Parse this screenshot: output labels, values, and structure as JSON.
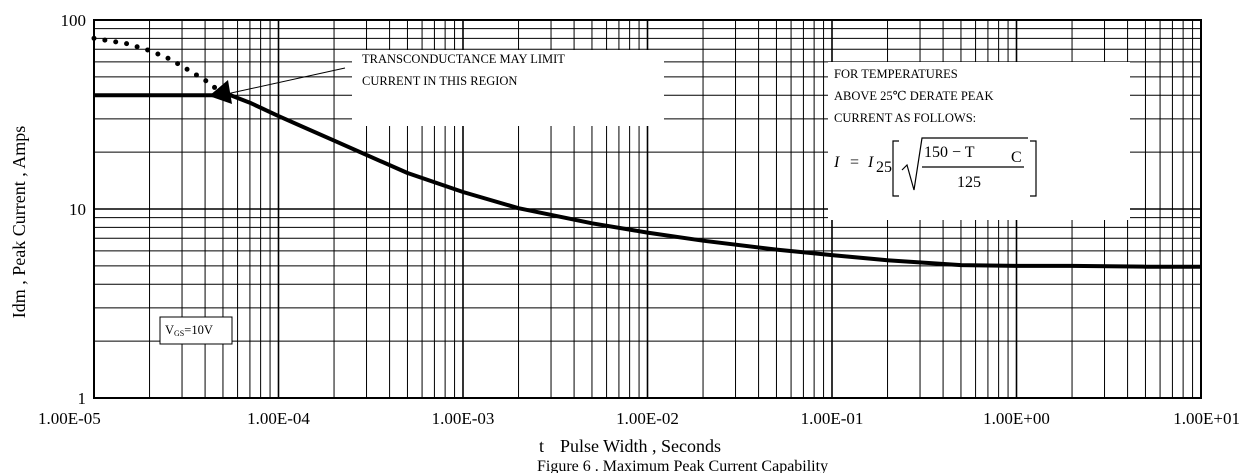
{
  "chart_data": {
    "type": "line",
    "title": "",
    "xlabel_prefix": "t",
    "xlabel": "Pulse Width , Seconds",
    "ylabel": "Idm , Peak Current , Amps",
    "xscale": "log",
    "yscale": "log",
    "xlim": [
      1e-05,
      10
    ],
    "ylim": [
      1,
      100
    ],
    "grid": true,
    "x_tick_labels": [
      "1.00E-05",
      "1.00E-04",
      "1.00E-03",
      "1.00E-02",
      "1.00E-01",
      "1.00E+00",
      "1.00E+01"
    ],
    "y_tick_labels": [
      "1",
      "10",
      "100"
    ],
    "series": [
      {
        "style": "solid",
        "x": [
          1e-05,
          2e-05,
          3e-05,
          4e-05,
          5e-05,
          5.5e-05,
          7e-05,
          0.0001,
          0.0002,
          0.0005,
          0.001,
          0.002,
          0.005,
          0.01,
          0.02,
          0.05,
          0.1,
          0.2,
          0.5,
          1,
          2,
          5,
          10
        ],
        "y": [
          40,
          40,
          40,
          40,
          40,
          40,
          36.5,
          31,
          23,
          15.5,
          12.3,
          10.1,
          8.4,
          7.5,
          6.8,
          6.1,
          5.7,
          5.35,
          5.05,
          5.0,
          5.0,
          4.95,
          4.95
        ]
      },
      {
        "style": "dotted",
        "x": [
          1e-05,
          1.5e-05,
          2e-05,
          2.5e-05,
          3e-05,
          3.5e-05,
          4e-05,
          4.5e-05,
          5e-05
        ],
        "y": [
          80,
          75,
          69,
          63,
          57,
          52,
          48,
          44,
          41
        ]
      }
    ],
    "annotations": [
      {
        "lines": [
          "TRANSCONDUCTANCE  MAY  LIMIT",
          "CURRENT  IN  THIS  REGION"
        ]
      },
      {
        "lines": [
          "FOR   TEMPERATURES",
          "ABOVE  25℃ DERATE  PEAK",
          "CURRENT   AS  FOLLOWS:"
        ]
      },
      {
        "label_v": "V",
        "label_sub": "GS",
        "label_rest": "=10V"
      }
    ],
    "formula": {
      "lhs": "I",
      "eq": "=",
      "i": "I",
      "i_sub": "25",
      "numerator": "150  − T",
      "numerator_sub": "C",
      "denominator": "125"
    },
    "caption": "Figure    6 .  Maximum Peak Current Capability"
  }
}
